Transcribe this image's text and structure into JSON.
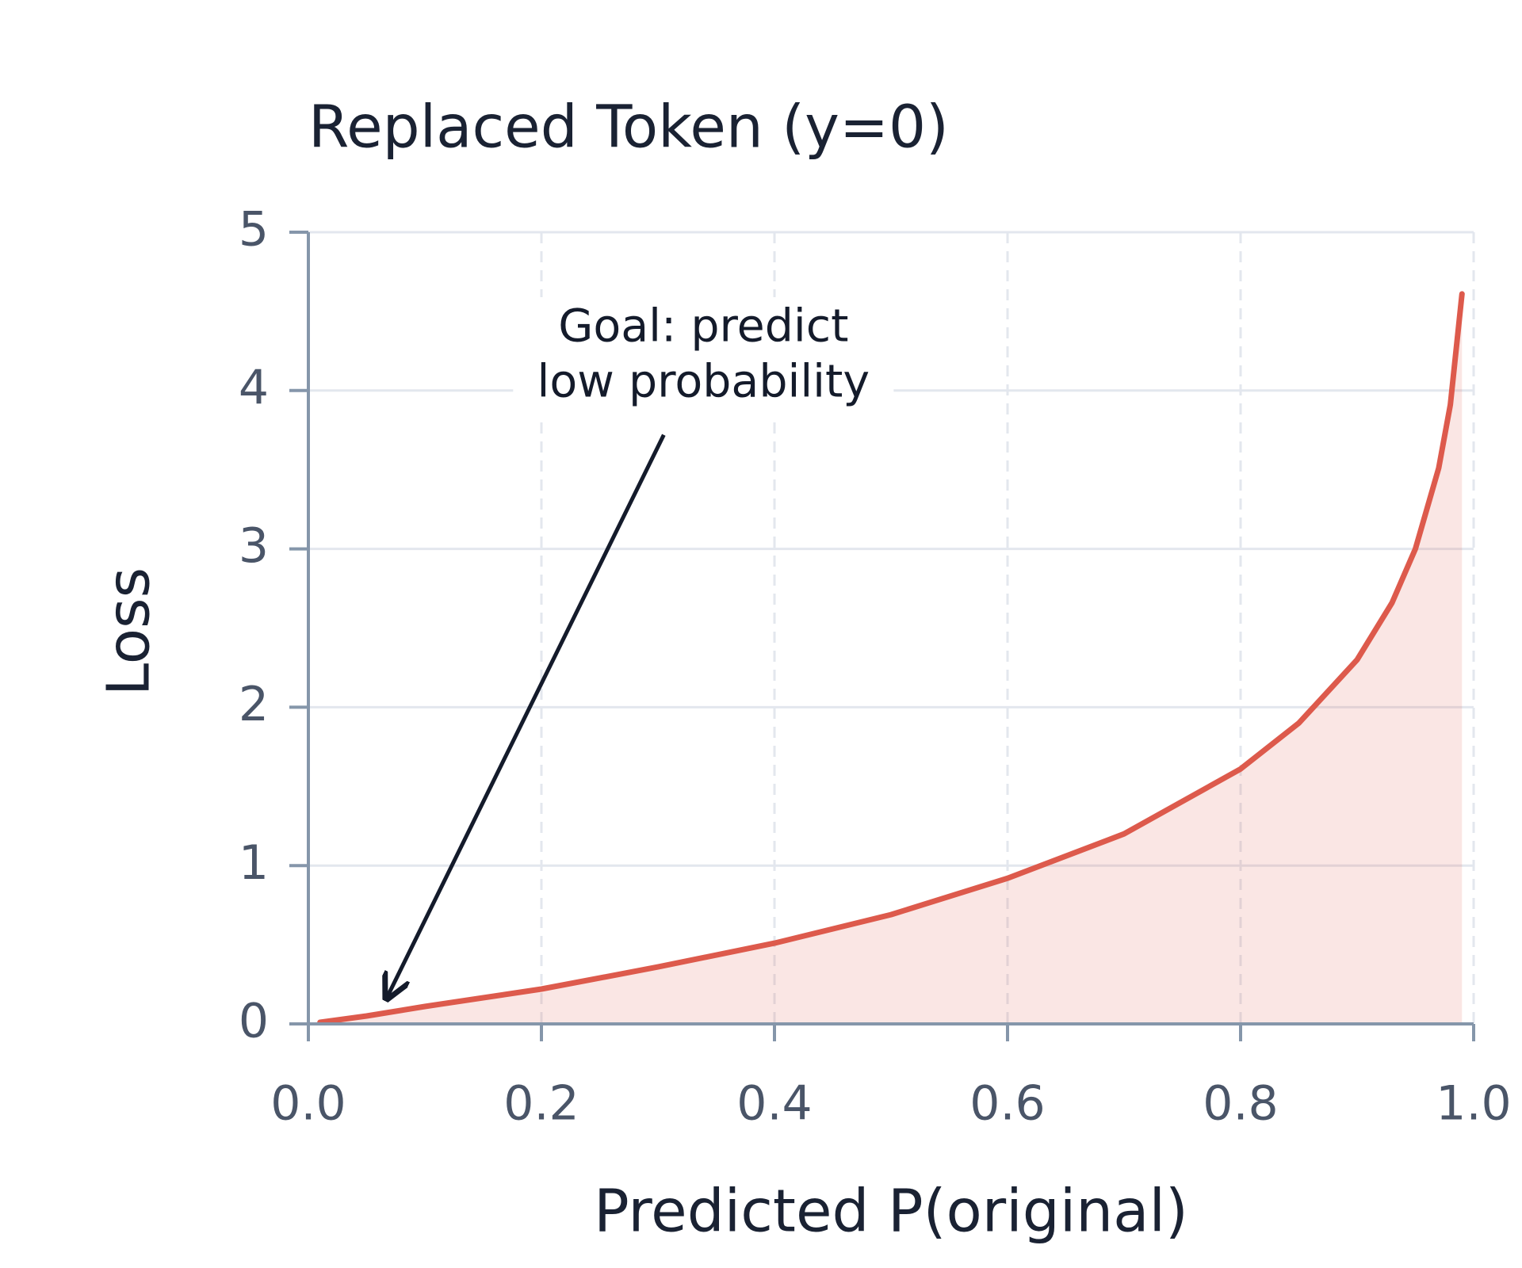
{
  "chart_data": {
    "type": "line",
    "title": "Replaced Token (y=0)",
    "xlabel": "Predicted P(original)",
    "ylabel": "Loss",
    "x": [
      0.01,
      0.05,
      0.1,
      0.2,
      0.3,
      0.4,
      0.5,
      0.6,
      0.7,
      0.8,
      0.85,
      0.9,
      0.93,
      0.95,
      0.97,
      0.98,
      0.99
    ],
    "values": [
      0.01,
      0.05,
      0.11,
      0.22,
      0.36,
      0.51,
      0.69,
      0.92,
      1.2,
      1.61,
      1.9,
      2.3,
      2.66,
      3.0,
      3.51,
      3.91,
      4.61
    ],
    "color": "#dd5a4c",
    "fill": true,
    "xlim": [
      0,
      1
    ],
    "ylim": [
      0,
      5
    ],
    "xticks": [
      {
        "value": 0,
        "label": "0.0"
      },
      0.2,
      0.4,
      0.6,
      0.8,
      {
        "value": 1,
        "label": "1.0"
      }
    ],
    "yticks": [
      0,
      1,
      2,
      3,
      4,
      5
    ],
    "grid": true,
    "annotation": [
      "Goal: predict",
      "low probability"
    ]
  }
}
